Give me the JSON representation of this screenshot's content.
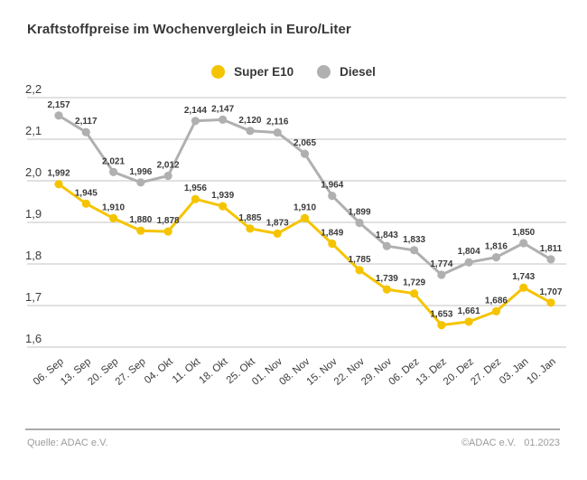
{
  "legend": [
    {
      "label": "Super E10",
      "color": "#f5c400"
    },
    {
      "label": "Diesel",
      "color": "#b0b0b0"
    }
  ],
  "footer": {
    "source": "Quelle: ADAC e.V.",
    "copyright": "©ADAC e.V.",
    "date": "01.2023"
  },
  "chart_data": {
    "type": "line",
    "title": "Kraftstoffpreise im Wochenvergleich in Euro/Liter",
    "categories": [
      "06. Sep",
      "13. Sep",
      "20. Sep",
      "27. Sep",
      "04. Okt",
      "11. Okt",
      "18. Okt",
      "25. Okt",
      "01. Nov",
      "08. Nov",
      "15. Nov",
      "22. Nov",
      "29. Nov",
      "06. Dez",
      "13. Dez",
      "20. Dez",
      "27. Dez",
      "03. Jan",
      "10. Jan"
    ],
    "series": [
      {
        "name": "Super E10",
        "color": "#f5c400",
        "values": [
          1.992,
          1.945,
          1.91,
          1.88,
          1.878,
          1.956,
          1.939,
          1.885,
          1.873,
          1.91,
          1.849,
          1.785,
          1.739,
          1.729,
          1.653,
          1.661,
          1.686,
          1.743,
          1.707
        ]
      },
      {
        "name": "Diesel",
        "color": "#b0b0b0",
        "values": [
          2.157,
          2.117,
          2.021,
          1.996,
          2.012,
          2.144,
          2.147,
          2.12,
          2.116,
          2.065,
          1.964,
          1.899,
          1.843,
          1.833,
          1.774,
          1.804,
          1.816,
          1.85,
          1.811
        ]
      }
    ],
    "xlabel": "",
    "ylabel": "Euro/Liter",
    "ylim": [
      1.6,
      2.2
    ],
    "yticks": [
      2.2,
      2.1,
      2.0,
      1.9,
      1.8,
      1.7,
      1.6
    ],
    "grid": true,
    "legend_position": "top",
    "decimal_separator": ",",
    "colors": {
      "grid": "#cfcfcf",
      "tick_text": "#3c3c3c",
      "data_label": "#3a3a3a"
    }
  }
}
